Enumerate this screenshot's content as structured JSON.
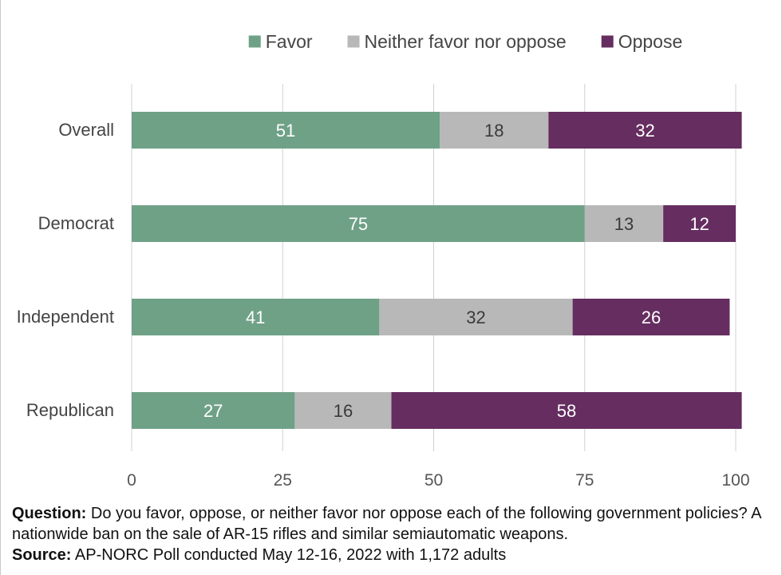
{
  "chart_data": {
    "type": "bar",
    "orientation": "horizontal",
    "stacked": true,
    "categories": [
      "Overall",
      "Democrat",
      "Independent",
      "Republican"
    ],
    "series": [
      {
        "name": "Favor",
        "color": "#6fa187",
        "values": [
          51,
          75,
          41,
          27
        ]
      },
      {
        "name": "Neither favor nor oppose",
        "color": "#b8b8b8",
        "values": [
          18,
          13,
          32,
          16
        ]
      },
      {
        "name": "Oppose",
        "color": "#652d60",
        "values": [
          32,
          12,
          26,
          58
        ]
      }
    ],
    "xlim": [
      0,
      100
    ],
    "xticks": [
      0,
      25,
      50,
      75,
      100
    ],
    "grid": "vertical",
    "legend_position": "top",
    "title": "",
    "xlabel": "",
    "ylabel": ""
  },
  "footnote": {
    "question_label": "Question:",
    "question_text": " Do you favor, oppose, or neither favor nor oppose each of the following government policies? A nationwide ban on the sale of AR-15 rifles and similar semiautomatic weapons.",
    "source_label": "Source:",
    "source_text": " AP-NORC Poll conducted May 12-16, 2022 with 1,172 adults"
  }
}
